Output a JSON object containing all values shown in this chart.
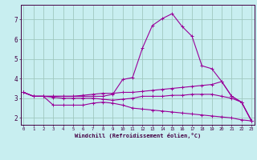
{
  "xlabel": "Windchill (Refroidissement éolien,°C)",
  "background_color": "#c8eef0",
  "grid_color": "#a0c8c0",
  "line_color": "#990099",
  "x": [
    0,
    1,
    2,
    3,
    4,
    5,
    6,
    7,
    8,
    9,
    10,
    11,
    12,
    13,
    14,
    15,
    16,
    17,
    18,
    19,
    20,
    21,
    22,
    23
  ],
  "line1": [
    3.3,
    3.1,
    3.1,
    3.1,
    3.1,
    3.1,
    3.1,
    3.1,
    3.1,
    3.2,
    3.95,
    4.05,
    5.55,
    6.7,
    7.05,
    7.3,
    6.65,
    6.15,
    4.65,
    4.5,
    3.85,
    3.1,
    2.8,
    1.85
  ],
  "line2": [
    3.3,
    3.1,
    3.1,
    3.1,
    3.1,
    3.1,
    3.15,
    3.2,
    3.25,
    3.25,
    3.3,
    3.3,
    3.35,
    3.4,
    3.45,
    3.5,
    3.55,
    3.6,
    3.65,
    3.7,
    3.85,
    3.1,
    2.8,
    1.85
  ],
  "line3": [
    3.3,
    3.1,
    3.1,
    2.65,
    2.65,
    2.65,
    2.65,
    2.75,
    2.8,
    2.75,
    2.65,
    2.5,
    2.45,
    2.4,
    2.35,
    2.3,
    2.25,
    2.2,
    2.15,
    2.1,
    2.05,
    2.0,
    1.9,
    1.85
  ],
  "line4": [
    3.3,
    3.1,
    3.1,
    3.05,
    3.0,
    3.0,
    3.0,
    3.0,
    2.95,
    2.9,
    2.95,
    3.0,
    3.1,
    3.1,
    3.1,
    3.15,
    3.15,
    3.2,
    3.2,
    3.2,
    3.1,
    3.0,
    2.8,
    1.85
  ],
  "yticks": [
    2,
    3,
    4,
    5,
    6,
    7
  ],
  "xticks": [
    0,
    1,
    2,
    3,
    4,
    5,
    6,
    7,
    8,
    9,
    10,
    11,
    12,
    13,
    14,
    15,
    16,
    17,
    18,
    19,
    20,
    21,
    22,
    23
  ],
  "ylim": [
    1.65,
    7.75
  ],
  "xlim": [
    -0.3,
    23.3
  ]
}
